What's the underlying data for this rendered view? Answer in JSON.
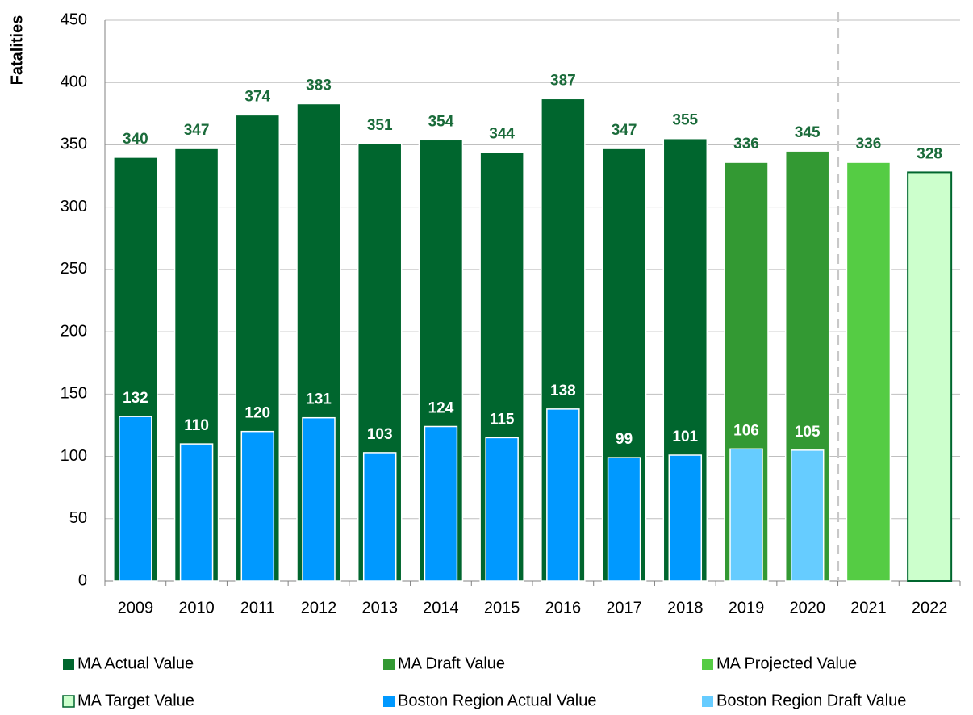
{
  "chart_data": {
    "type": "bar",
    "y_label": "Fatalities",
    "categories": [
      "2009",
      "2010",
      "2011",
      "2012",
      "2013",
      "2014",
      "2015",
      "2016",
      "2017",
      "2018",
      "2019",
      "2020",
      "2021",
      "2022"
    ],
    "series": [
      {
        "name": "MA Actual Value",
        "color": "#00662e",
        "label_color": "#1a6b3a",
        "values": [
          340,
          347,
          374,
          383,
          351,
          354,
          344,
          387,
          347,
          355,
          null,
          null,
          null,
          null
        ]
      },
      {
        "name": "MA Draft Value",
        "color": "#339933",
        "label_color": "#1a6b3a",
        "values": [
          null,
          null,
          null,
          null,
          null,
          null,
          null,
          null,
          null,
          null,
          336,
          345,
          null,
          null
        ]
      },
      {
        "name": "MA Projected Value",
        "color": "#55cc44",
        "label_color": "#1a6b3a",
        "values": [
          null,
          null,
          null,
          null,
          null,
          null,
          null,
          null,
          null,
          null,
          null,
          null,
          336,
          null
        ]
      },
      {
        "name": "MA Target Value",
        "color": "#ccffcc",
        "edgecolor": "#00662e",
        "label_color": "#1a6b3a",
        "values": [
          null,
          null,
          null,
          null,
          null,
          null,
          null,
          null,
          null,
          null,
          null,
          null,
          null,
          328
        ]
      },
      {
        "name": "Boston Region Actual Value",
        "color": "#0099ff",
        "label_color": "#ffffff",
        "values": [
          132,
          110,
          120,
          131,
          103,
          124,
          115,
          138,
          99,
          101,
          null,
          null,
          null,
          null
        ]
      },
      {
        "name": "Boston Region Draft Value",
        "color": "#66ccff",
        "label_color": "#ffffff",
        "values": [
          null,
          null,
          null,
          null,
          null,
          null,
          null,
          null,
          null,
          null,
          106,
          105,
          null,
          null
        ]
      }
    ],
    "ylim": [
      0,
      450
    ],
    "yticks": [
      0,
      50,
      100,
      150,
      200,
      250,
      300,
      350,
      400,
      450
    ],
    "grid": true,
    "legend": "bottom"
  }
}
